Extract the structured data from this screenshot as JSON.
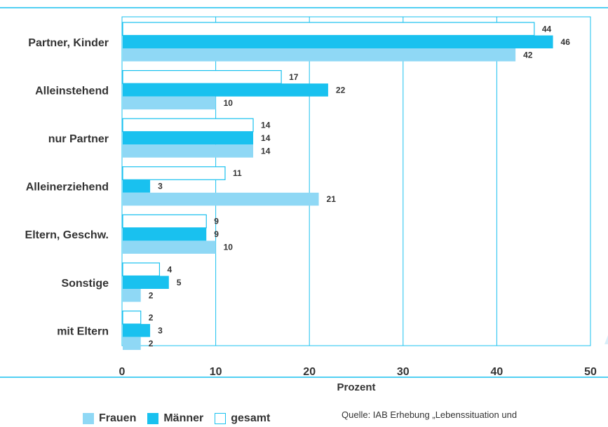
{
  "chart_data": {
    "type": "bar",
    "orientation": "horizontal",
    "categories": [
      "Partner, Kinder",
      "Alleinstehend",
      "nur Partner",
      "Alleinerziehend",
      "Eltern, Geschw.",
      "Sonstige",
      "mit Eltern"
    ],
    "series": [
      {
        "name": "gesamt",
        "values": [
          44,
          17,
          14,
          11,
          9,
          4,
          2
        ],
        "color": "#ffffff",
        "stroke": "#19c1ef"
      },
      {
        "name": "Männer",
        "values": [
          46,
          22,
          14,
          3,
          9,
          5,
          3
        ],
        "color": "#19c1ef"
      },
      {
        "name": "Frauen",
        "values": [
          42,
          10,
          14,
          21,
          10,
          2,
          2
        ],
        "color": "#8fd8f5"
      }
    ],
    "xlabel": "Prozent",
    "xlim": [
      0,
      50
    ],
    "xticks": [
      0,
      10,
      20,
      30,
      40,
      50
    ],
    "grid": true,
    "legend": {
      "position": "bottom",
      "items": [
        {
          "label": "Frauen",
          "color": "#8fd8f5"
        },
        {
          "label": "Männer",
          "color": "#19c1ef"
        },
        {
          "label": "gesamt",
          "color": "#ffffff",
          "stroke": "#19c1ef"
        }
      ]
    }
  },
  "source_text": "Quelle: IAB Erhebung „Lebenssituation und"
}
